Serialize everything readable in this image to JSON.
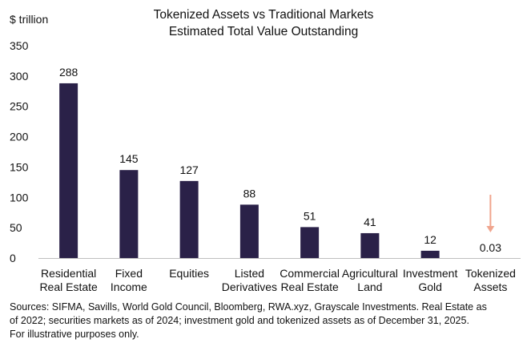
{
  "chart_data": {
    "type": "bar",
    "title": "Tokenized Assets vs Traditional Markets",
    "subtitle": "Estimated Total Value Outstanding",
    "ylabel": "$ trillion",
    "ylim": [
      0,
      350
    ],
    "yticks": [
      0,
      50,
      100,
      150,
      200,
      250,
      300,
      350
    ],
    "categories": [
      [
        "Residential",
        "Real Estate"
      ],
      [
        "Fixed",
        "Income"
      ],
      [
        "Equities"
      ],
      [
        "Listed",
        "Derivatives"
      ],
      [
        "Commercial",
        "Real Estate"
      ],
      [
        "Agricultural",
        "Land"
      ],
      [
        "Investment",
        "Gold"
      ],
      [
        "Tokenized",
        "Assets"
      ]
    ],
    "values": [
      288,
      145,
      127,
      88,
      51,
      41,
      12,
      0.03
    ],
    "data_labels": [
      "288",
      "145",
      "127",
      "88",
      "51",
      "41",
      "12",
      "0.03"
    ],
    "bar_color": "#2a2148",
    "arrow_color": "#f0a58e",
    "grid": false,
    "legend": "none"
  },
  "source_lines": [
    "Sources: SIFMA, Savills, World Gold Council, Bloomberg, RWA.xyz, Grayscale Investments. Real Estate as",
    "of 2022; securities markets as of 2024; investment gold and tokenized assets as of December 31, 2025.",
    "For illustrative purposes only."
  ]
}
